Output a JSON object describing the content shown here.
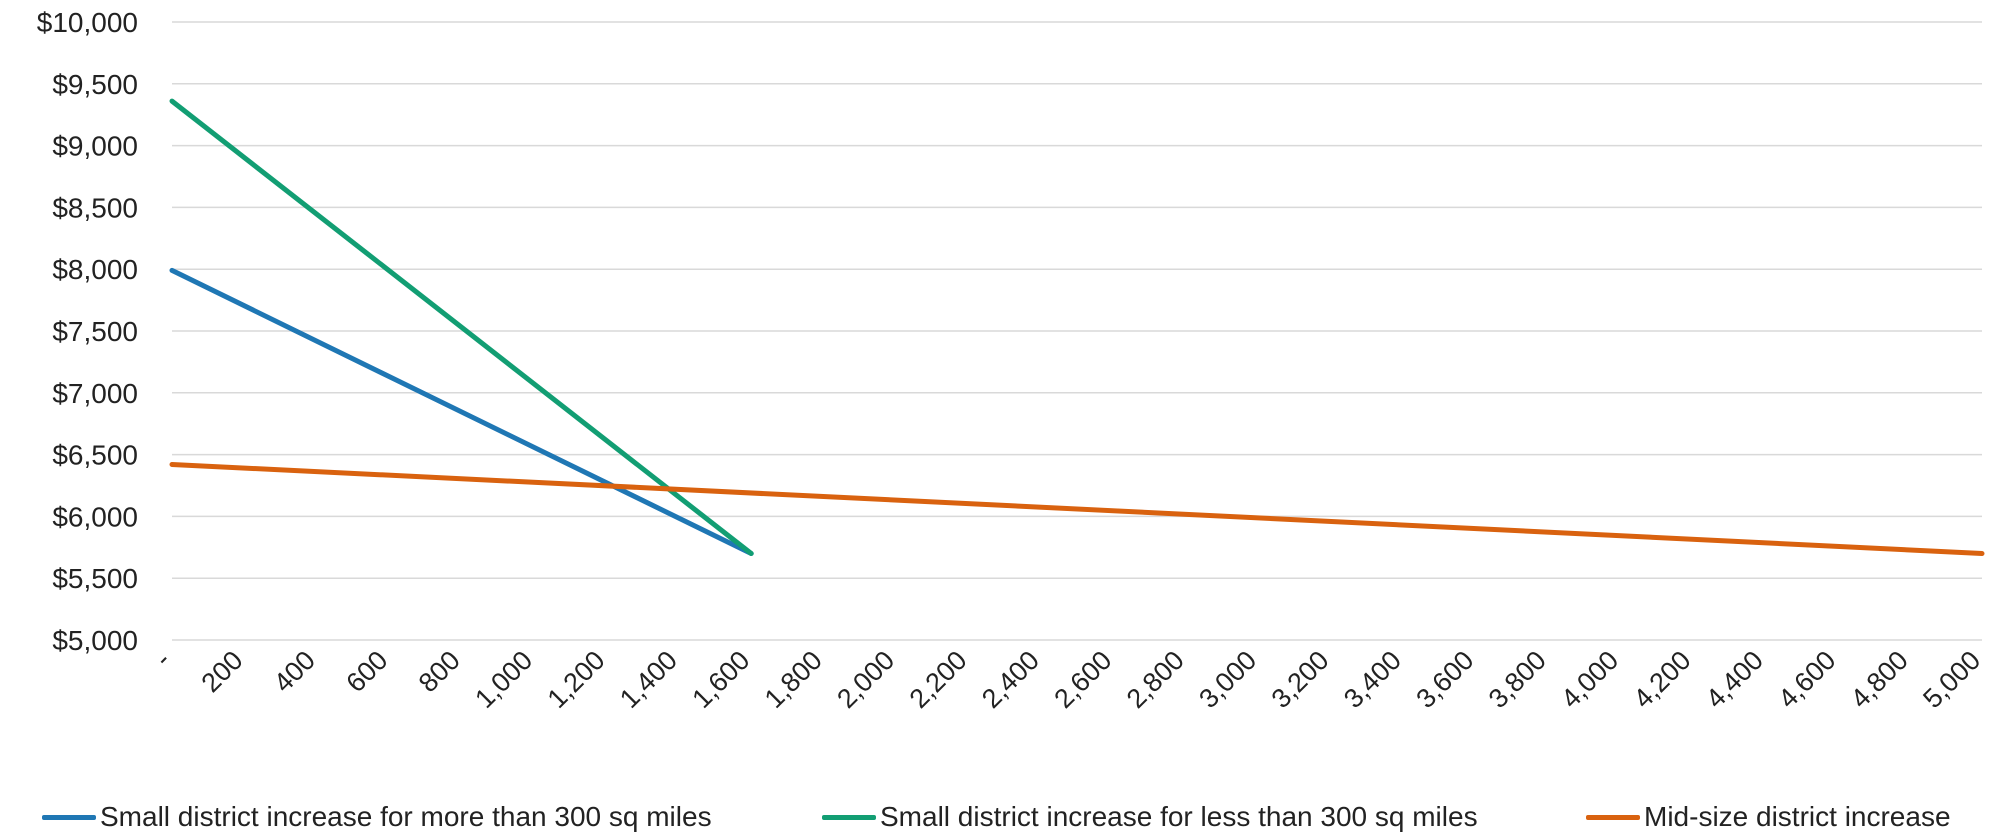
{
  "chart_data": {
    "type": "line",
    "title": "",
    "xlabel": "",
    "ylabel": "",
    "xlim": [
      0,
      5000
    ],
    "ylim": [
      5000,
      10000
    ],
    "grid": true,
    "legend_position": "bottom",
    "y_ticks": [
      {
        "value": 10000,
        "label": "$10,000"
      },
      {
        "value": 9500,
        "label": "$9,500"
      },
      {
        "value": 9000,
        "label": "$9,000"
      },
      {
        "value": 8500,
        "label": "$8,500"
      },
      {
        "value": 8000,
        "label": "$8,000"
      },
      {
        "value": 7500,
        "label": "$7,500"
      },
      {
        "value": 7000,
        "label": "$7,000"
      },
      {
        "value": 6500,
        "label": "$6,500"
      },
      {
        "value": 6000,
        "label": "$6,000"
      },
      {
        "value": 5500,
        "label": "$5,500"
      },
      {
        "value": 5000,
        "label": "$5,000"
      }
    ],
    "x_ticks": [
      {
        "value": 0,
        "label": "-"
      },
      {
        "value": 200,
        "label": "200"
      },
      {
        "value": 400,
        "label": "400"
      },
      {
        "value": 600,
        "label": "600"
      },
      {
        "value": 800,
        "label": "800"
      },
      {
        "value": 1000,
        "label": "1,000"
      },
      {
        "value": 1200,
        "label": "1,200"
      },
      {
        "value": 1400,
        "label": "1,400"
      },
      {
        "value": 1600,
        "label": "1,600"
      },
      {
        "value": 1800,
        "label": "1,800"
      },
      {
        "value": 2000,
        "label": "2,000"
      },
      {
        "value": 2200,
        "label": "2,200"
      },
      {
        "value": 2400,
        "label": "2,400"
      },
      {
        "value": 2600,
        "label": "2,600"
      },
      {
        "value": 2800,
        "label": "2,800"
      },
      {
        "value": 3000,
        "label": "3,000"
      },
      {
        "value": 3200,
        "label": "3,200"
      },
      {
        "value": 3400,
        "label": "3,400"
      },
      {
        "value": 3600,
        "label": "3,600"
      },
      {
        "value": 3800,
        "label": "3,800"
      },
      {
        "value": 4000,
        "label": "4,000"
      },
      {
        "value": 4200,
        "label": "4,200"
      },
      {
        "value": 4400,
        "label": "4,400"
      },
      {
        "value": 4600,
        "label": "4,600"
      },
      {
        "value": 4800,
        "label": "4,800"
      },
      {
        "value": 5000,
        "label": "5,000"
      }
    ],
    "series": [
      {
        "name": "Small district increase for more than 300 sq miles",
        "color": "#1f77b4",
        "points": [
          [
            0,
            7990
          ],
          [
            1600,
            5700
          ]
        ]
      },
      {
        "name": "Small district increase for less than 300 sq miles",
        "color": "#129e73",
        "points": [
          [
            0,
            9360
          ],
          [
            1600,
            5700
          ]
        ]
      },
      {
        "name": "Mid-size district increase",
        "color": "#d9620f",
        "points": [
          [
            0,
            6420
          ],
          [
            5000,
            5700
          ]
        ]
      }
    ]
  }
}
